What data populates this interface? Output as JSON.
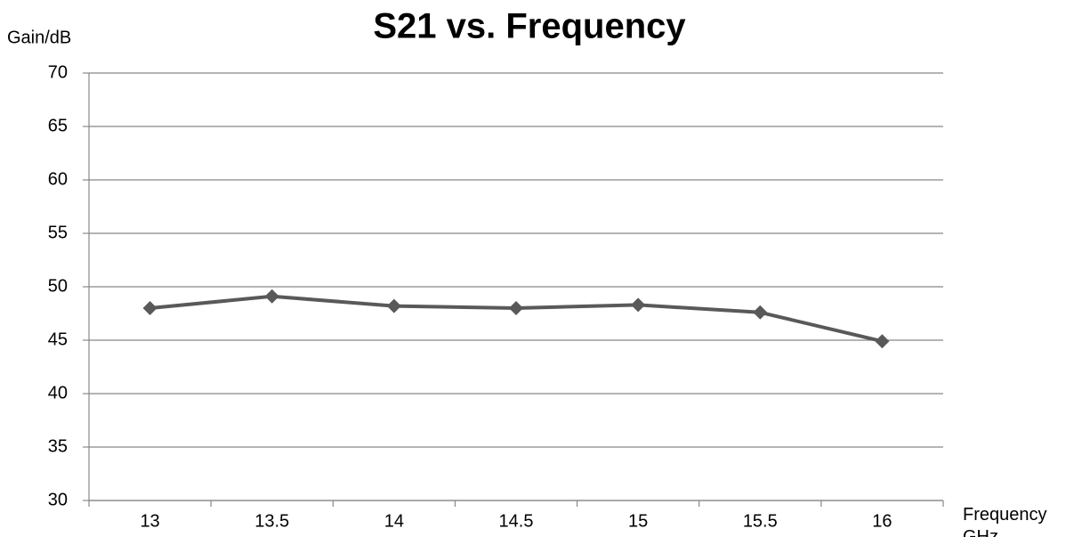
{
  "chart_data": {
    "type": "line",
    "title": "S21 vs. Frequency",
    "y_label": "Gain/dB",
    "x_label": "Frequency GHz",
    "categories": [
      "13",
      "13.5",
      "14",
      "14.5",
      "15",
      "15.5",
      "16"
    ],
    "values": [
      48.0,
      49.1,
      48.2,
      48.0,
      48.3,
      47.6,
      44.9
    ],
    "color": "#595959",
    "ylim": [
      30,
      70
    ],
    "yticks": [
      30,
      35,
      40,
      45,
      50,
      55,
      60,
      65,
      70
    ],
    "grid": true
  }
}
